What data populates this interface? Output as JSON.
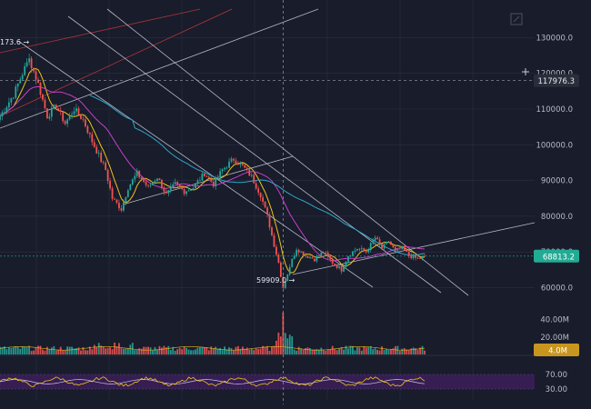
{
  "chart_data": {
    "type": "candlestick",
    "price_axis": {
      "ticks": [
        60000,
        70000,
        80000,
        90000,
        100000,
        110000,
        120000,
        130000
      ],
      "tick_labels": [
        "60000.0",
        "70000.0",
        "80000.0",
        "90000.0",
        "100000.0",
        "110000.0",
        "120000.0",
        "130000.0"
      ],
      "range": [
        54000,
        138000
      ]
    },
    "volume_axis": {
      "ticks": [
        20,
        40
      ],
      "tick_labels": [
        "20.00M",
        "40.00M"
      ],
      "range": [
        0,
        52
      ]
    },
    "rsi_axis": {
      "ticks": [
        70,
        30
      ],
      "tick_labels": [
        "70.00",
        "30.00"
      ],
      "range": [
        0,
        100
      ]
    },
    "badges": {
      "crosshair_price": {
        "value": 117976.3,
        "label": "117976.3",
        "bg": "#2a2e3b",
        "fg": "#e6e8ee"
      },
      "last_price": {
        "value": 68813.2,
        "label": "68813.2",
        "bg": "#22ab94",
        "fg": "#ffffff"
      },
      "last_volume": {
        "value": 4.0,
        "label": "4.0M",
        "bg": "#c8961e",
        "fg": "#ffffff"
      }
    },
    "annotations": {
      "high_label": "173.6 →",
      "high_value": 124173.6,
      "low_label": "59909.0 →",
      "low_value": 59909.0
    },
    "key_points": [
      [
        0,
        108000
      ],
      [
        6,
        114000
      ],
      [
        10,
        120000
      ],
      [
        13,
        124173
      ],
      [
        17,
        117000
      ],
      [
        21,
        108000
      ],
      [
        25,
        111000
      ],
      [
        29,
        106000
      ],
      [
        33,
        110000
      ],
      [
        37,
        107000
      ],
      [
        41,
        101000
      ],
      [
        44,
        97000
      ],
      [
        47,
        93000
      ],
      [
        50,
        85000
      ],
      [
        54,
        82000
      ],
      [
        57,
        88000
      ],
      [
        61,
        92000
      ],
      [
        66,
        88000
      ],
      [
        70,
        91000
      ],
      [
        74,
        86000
      ],
      [
        78,
        89000
      ],
      [
        82,
        87000
      ],
      [
        86,
        88000
      ],
      [
        91,
        92000
      ],
      [
        95,
        89000
      ],
      [
        99,
        93000
      ],
      [
        104,
        96000
      ],
      [
        108,
        94000
      ],
      [
        112,
        91000
      ],
      [
        116,
        86000
      ],
      [
        119,
        80000
      ],
      [
        122,
        72000
      ],
      [
        124,
        67000
      ],
      [
        126,
        59909
      ],
      [
        129,
        66000
      ],
      [
        132,
        71000
      ],
      [
        136,
        69000
      ],
      [
        140,
        68000
      ],
      [
        144,
        70000
      ],
      [
        148,
        67000
      ],
      [
        152,
        65000
      ],
      [
        155,
        69000
      ],
      [
        159,
        71000
      ],
      [
        163,
        70000
      ],
      [
        167,
        74000
      ],
      [
        170,
        71000
      ],
      [
        173,
        73000
      ],
      [
        176,
        70000
      ],
      [
        179,
        71000
      ],
      [
        182,
        69000
      ],
      [
        186,
        68000
      ],
      [
        189,
        68813
      ]
    ],
    "moving_averages": [
      {
        "color": "#f0c419",
        "period": 7
      },
      {
        "color": "#c83fc8",
        "period": 25
      },
      {
        "color": "#2fa7c9",
        "period": 99
      }
    ],
    "colors": {
      "up": "#26a69a",
      "down": "#ef5350",
      "grid": "#2a2f45",
      "axis_text": "#b8bcc8",
      "rsi_band": "#3c1f5a",
      "rsi_line": "#f0c419",
      "rsi_line2": "#c8c8e8"
    },
    "grid": true
  }
}
